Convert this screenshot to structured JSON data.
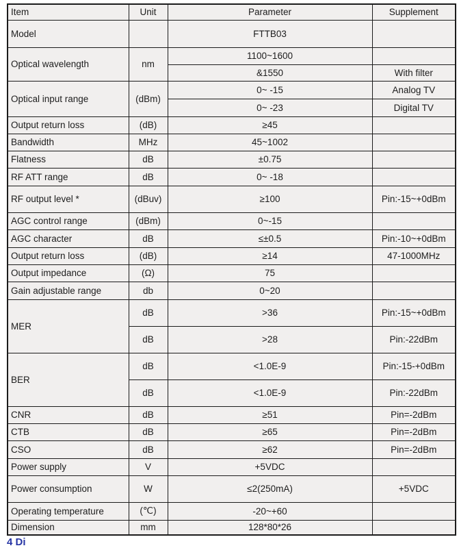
{
  "colors": {
    "cell_background": "#f1efee",
    "border": "#1b1b1b",
    "text": "#1d1d1d",
    "footer_heading_blue": "#2735a5",
    "page_background": "#ffffff"
  },
  "table": {
    "header": {
      "item": "Item",
      "unit": "Unit",
      "parameter": "Parameter",
      "supplement": "Supplement"
    },
    "rows": {
      "model": {
        "item": "Model",
        "unit": "",
        "parameter": "FTTB03",
        "supplement": ""
      },
      "optical_wavelength": {
        "item": "Optical wavelength",
        "unit": "nm",
        "sub1": {
          "parameter": "1100~1600",
          "supplement": ""
        },
        "sub2": {
          "parameter": "&1550",
          "supplement": "With filter"
        }
      },
      "optical_input_range": {
        "item": "Optical input range",
        "unit": "(dBm)",
        "sub1": {
          "parameter": "0~ -15",
          "supplement": "Analog TV"
        },
        "sub2": {
          "parameter": "0~ -23",
          "supplement": "Digital TV"
        }
      },
      "output_return_loss_1": {
        "item": "Output return loss",
        "unit": "(dB)",
        "parameter": "≥45",
        "supplement": ""
      },
      "bandwidth": {
        "item": "Bandwidth",
        "unit": "MHz",
        "parameter": "45~1002",
        "supplement": ""
      },
      "flatness": {
        "item": "Flatness",
        "unit": "dB",
        "parameter": "±0.75",
        "supplement": ""
      },
      "rf_att_range": {
        "item": "RF ATT range",
        "unit": "dB",
        "parameter": "0~ -18",
        "supplement": ""
      },
      "rf_output_level": {
        "item": "RF output level *",
        "unit": "(dBuv)",
        "parameter": "≥100",
        "supplement": "Pin:-15~+0dBm"
      },
      "agc_control_range": {
        "item": "AGC control range",
        "unit": "(dBm)",
        "parameter": "0~-15",
        "supplement": ""
      },
      "agc_character": {
        "item": "AGC character",
        "unit": "dB",
        "parameter": "≤±0.5",
        "supplement": "Pin:-10~+0dBm"
      },
      "output_return_loss_2": {
        "item": "Output return loss",
        "unit": "(dB)",
        "parameter": "≥14",
        "supplement": "47-1000MHz"
      },
      "output_impedance": {
        "item": "Output impedance",
        "unit": "(Ω)",
        "parameter": "75",
        "supplement": ""
      },
      "gain_adjustable_range": {
        "item": "Gain adjustable range",
        "unit": "db",
        "parameter": "0~20",
        "supplement": ""
      },
      "mer": {
        "item": "MER",
        "sub1": {
          "unit": "dB",
          "parameter": ">36",
          "supplement": "Pin:-15~+0dBm"
        },
        "sub2": {
          "unit": "dB",
          "parameter": ">28",
          "supplement": "Pin:-22dBm"
        }
      },
      "ber": {
        "item": "BER",
        "sub1": {
          "unit": "dB",
          "parameter": "<1.0E-9",
          "supplement": "Pin:-15-+0dBm"
        },
        "sub2": {
          "unit": "dB",
          "parameter": "<1.0E-9",
          "supplement": "Pin:-22dBm"
        }
      },
      "cnr": {
        "item": "CNR",
        "unit": "dB",
        "parameter": "≥51",
        "supplement": "Pin=-2dBm"
      },
      "ctb": {
        "item": "CTB",
        "unit": "dB",
        "parameter": "≥65",
        "supplement": "Pin=-2dBm"
      },
      "cso": {
        "item": "CSO",
        "unit": "dB",
        "parameter": "≥62",
        "supplement": "Pin=-2dBm"
      },
      "power_supply": {
        "item": "Power supply",
        "unit": "V",
        "parameter": "+5VDC",
        "supplement": ""
      },
      "power_consumption": {
        "item": "Power consumption",
        "unit": "W",
        "parameter": "≤2(250mA)",
        "supplement": "+5VDC"
      },
      "operating_temperature": {
        "item": "Operating temperature",
        "unit": "(℃)",
        "parameter": "-20~+60",
        "supplement": ""
      },
      "dimension": {
        "item": "Dimension",
        "unit": "mm",
        "parameter": "128*80*26",
        "supplement": ""
      }
    }
  },
  "footer": {
    "partial_heading": "4 Di"
  }
}
